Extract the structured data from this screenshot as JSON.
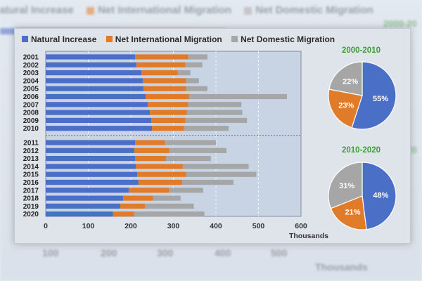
{
  "legend": {
    "items": [
      {
        "label": "Natural Increase",
        "color": "#4a6fc7"
      },
      {
        "label": "Net International Migration",
        "color": "#e07b2a"
      },
      {
        "label": "Net Domestic Migration",
        "color": "#a6a6a6"
      }
    ]
  },
  "backdrop": {
    "legend": [
      "atural Increase",
      "Net International Migration",
      "Net Domestic Migration"
    ],
    "axis_ticks": [
      "100",
      "200",
      "300",
      "400",
      "500"
    ],
    "axis_title": "Thousands",
    "pie_label_top": "2000-20",
    "pie_label_bottom": "2010-20"
  },
  "chart_data": [
    {
      "type": "bar",
      "orientation": "horizontal",
      "stacked": true,
      "categories": [
        "2001",
        "2002",
        "2003",
        "2004",
        "2005",
        "2006",
        "2007",
        "2008",
        "2009",
        "2010",
        "2011",
        "2012",
        "2013",
        "2014",
        "2015",
        "2016",
        "2017",
        "2018",
        "2019",
        "2020"
      ],
      "series": [
        {
          "name": "Natural Increase",
          "values": [
            210,
            213,
            225,
            228,
            230,
            235,
            240,
            245,
            248,
            250,
            210,
            208,
            210,
            212,
            215,
            218,
            195,
            182,
            175,
            158
          ]
        },
        {
          "name": "Net International Migration",
          "values": [
            125,
            115,
            85,
            102,
            100,
            102,
            95,
            87,
            80,
            75,
            70,
            82,
            73,
            110,
            115,
            103,
            95,
            70,
            58,
            50
          ]
        },
        {
          "name": "Net Domestic Migration",
          "values": [
            45,
            40,
            30,
            30,
            50,
            230,
            125,
            130,
            145,
            105,
            120,
            135,
            105,
            155,
            165,
            120,
            80,
            65,
            115,
            165
          ]
        }
      ],
      "xlim": [
        0,
        600
      ],
      "x_ticks": [
        "0",
        "100",
        "200",
        "300",
        "400",
        "500",
        "600"
      ],
      "xlabel": "Thousands",
      "gridlines": "vertical, dashed",
      "legend_position": "top"
    },
    {
      "type": "pie",
      "title": "2000-2010",
      "slices": [
        {
          "name": "Natural Increase",
          "value": 55,
          "label": "55%"
        },
        {
          "name": "Net International Migration",
          "value": 23,
          "label": "23%"
        },
        {
          "name": "Net Domestic Migration",
          "value": 22,
          "label": "22%"
        }
      ]
    },
    {
      "type": "pie",
      "title": "2010-2020",
      "slices": [
        {
          "name": "Natural Increase",
          "value": 48,
          "label": "48%"
        },
        {
          "name": "Net International Migration",
          "value": 21,
          "label": "21%"
        },
        {
          "name": "Net Domestic Migration",
          "value": 31,
          "label": "31%"
        }
      ]
    }
  ]
}
